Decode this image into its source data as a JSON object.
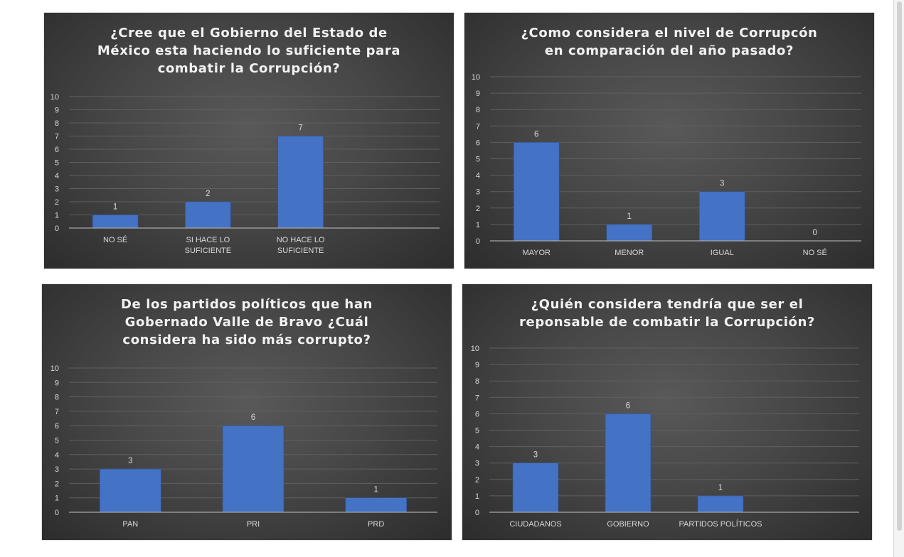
{
  "colors": {
    "bar": "#4472c4",
    "text": "#d9d9d9",
    "grid": "#5f5f5f",
    "axis": "#a6a6a6"
  },
  "chart_data": [
    {
      "type": "bar",
      "title_lines": [
        "¿Cree que el Gobierno del Estado de",
        "México esta haciendo lo suficiente para",
        "combatir la Corrupción?"
      ],
      "categories": [
        [
          "NO SÉ"
        ],
        [
          "SI HACE LO",
          "SUFICIENTE"
        ],
        [
          "NO HACE LO",
          "SUFICIENTE"
        ],
        [
          ""
        ]
      ],
      "values": [
        1,
        2,
        7,
        null
      ],
      "labels": [
        "1",
        "2",
        "7",
        ""
      ],
      "ylim": [
        0,
        10
      ],
      "yticks": [
        "0",
        "1",
        "2",
        "3",
        "4",
        "5",
        "6",
        "7",
        "8",
        "9",
        "10"
      ],
      "grid": true
    },
    {
      "type": "bar",
      "title_lines": [
        "¿Como considera el nivel de Corrupcón",
        "en comparación del año pasado?"
      ],
      "categories": [
        [
          "MAYOR"
        ],
        [
          "MENOR"
        ],
        [
          "IGUAL"
        ],
        [
          "NO SÉ"
        ]
      ],
      "values": [
        6,
        1,
        3,
        0
      ],
      "labels": [
        "6",
        "1",
        "3",
        "0"
      ],
      "ylim": [
        0,
        10
      ],
      "yticks": [
        "0",
        "1",
        "2",
        "3",
        "4",
        "5",
        "6",
        "7",
        "8",
        "9",
        "10"
      ],
      "grid": true
    },
    {
      "type": "bar",
      "title_lines": [
        "De los partidos políticos que han",
        "Gobernado Valle de Bravo ¿Cuál",
        "considera ha sido más corrupto?"
      ],
      "categories": [
        [
          "PAN"
        ],
        [
          "PRI"
        ],
        [
          "PRD"
        ]
      ],
      "values": [
        3,
        6,
        1
      ],
      "labels": [
        "3",
        "6",
        "1"
      ],
      "ylim": [
        0,
        10
      ],
      "yticks": [
        "0",
        "1",
        "2",
        "3",
        "4",
        "5",
        "6",
        "7",
        "8",
        "9",
        "10"
      ],
      "grid": true
    },
    {
      "type": "bar",
      "title_lines": [
        "¿Quién considera tendría que ser el",
        "reponsable de combatir la Corrupción?"
      ],
      "categories": [
        [
          "CIUDADANOS"
        ],
        [
          "GOBIERNO"
        ],
        [
          "PARTIDOS POLÍTICOS"
        ],
        [
          ""
        ]
      ],
      "values": [
        3,
        6,
        1,
        null
      ],
      "labels": [
        "3",
        "6",
        "1",
        ""
      ],
      "ylim": [
        0,
        10
      ],
      "yticks": [
        "0",
        "1",
        "2",
        "3",
        "4",
        "5",
        "6",
        "7",
        "8",
        "9",
        "10"
      ],
      "grid": true
    }
  ]
}
